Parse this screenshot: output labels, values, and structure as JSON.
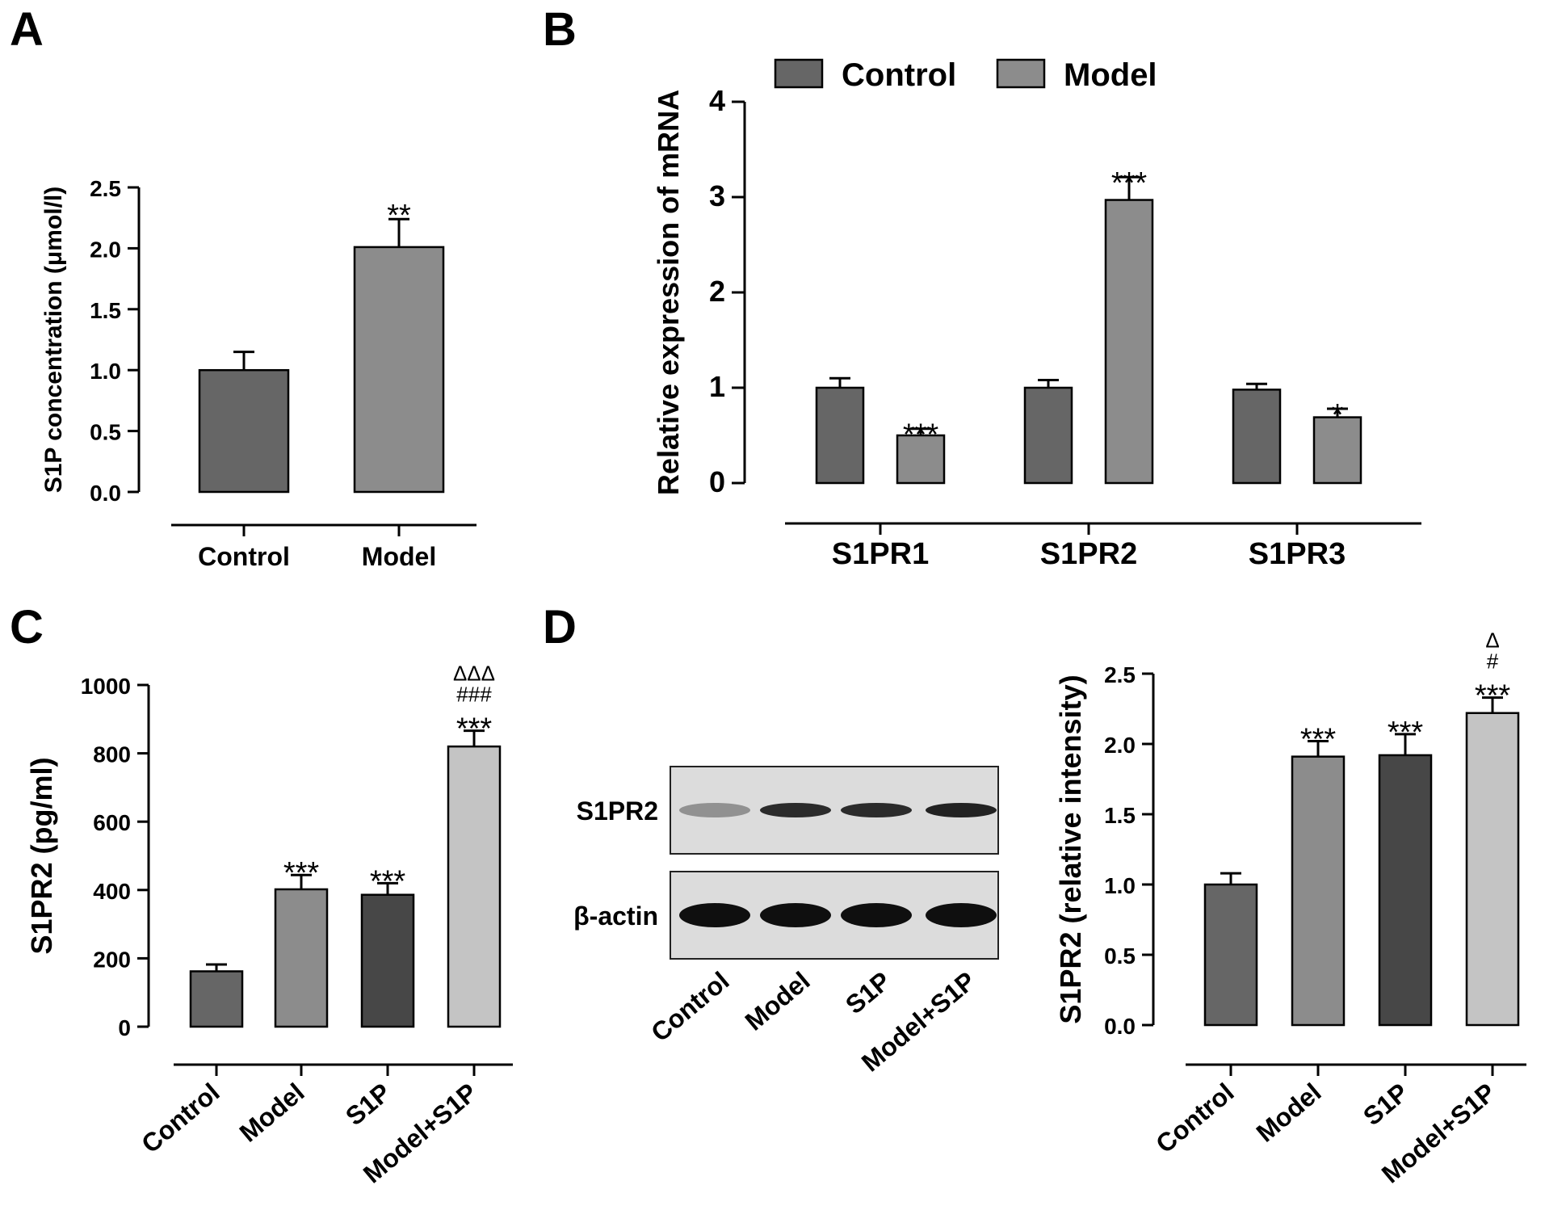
{
  "colors": {
    "control": "#666666",
    "model": "#8c8c8c",
    "s1p": "#474747",
    "model_s1p": "#c4c4c4",
    "axis": "#000000"
  },
  "chart_data": [
    {
      "panel": "A",
      "type": "bar",
      "categories": [
        "Control",
        "Model"
      ],
      "values": [
        1.0,
        2.01
      ],
      "errors": [
        0.15,
        0.23
      ],
      "significance": [
        "",
        "**"
      ],
      "ylabel": "S1P concentration (μmol/l)",
      "ylim": [
        0,
        2.5
      ],
      "yticks": [
        "0.0",
        "0.5",
        "1.0",
        "1.5",
        "2.0",
        "2.5"
      ],
      "bar_colors": [
        "#666666",
        "#8c8c8c"
      ]
    },
    {
      "panel": "B",
      "type": "bar",
      "categories": [
        "S1PR1",
        "S1PR2",
        "S1PR3"
      ],
      "series": [
        {
          "name": "Control",
          "values": [
            1.0,
            1.0,
            0.98
          ],
          "errors": [
            0.1,
            0.08,
            0.06
          ],
          "significance": [
            "",
            "",
            ""
          ],
          "color": "#666666"
        },
        {
          "name": "Model",
          "values": [
            0.5,
            2.97,
            0.69
          ],
          "errors": [
            0.07,
            0.24,
            0.09
          ],
          "significance": [
            "***",
            "***",
            "*"
          ],
          "color": "#8c8c8c"
        }
      ],
      "ylabel": "Relative expression of mRNA",
      "ylim": [
        0,
        4
      ],
      "yticks": [
        "0",
        "1",
        "2",
        "3",
        "4"
      ],
      "legend": "top"
    },
    {
      "panel": "C",
      "type": "bar",
      "categories": [
        "Control",
        "Model",
        "S1P",
        "Model+S1P"
      ],
      "values": [
        162,
        402,
        386,
        820
      ],
      "errors": [
        20,
        42,
        34,
        46
      ],
      "significance": [
        [],
        [
          "***"
        ],
        [
          "***"
        ],
        [
          "***",
          "###",
          "ΔΔΔ"
        ]
      ],
      "ylabel": "S1PR2 (pg/ml)",
      "ylim": [
        0,
        1000
      ],
      "yticks": [
        "0",
        "200",
        "400",
        "600",
        "800",
        "1000"
      ],
      "bar_colors": [
        "#666666",
        "#8c8c8c",
        "#474747",
        "#c4c4c4"
      ]
    },
    {
      "panel": "D",
      "type": "bar",
      "categories": [
        "Control",
        "Model",
        "S1P",
        "Model+S1P"
      ],
      "values": [
        1.0,
        1.91,
        1.92,
        2.22
      ],
      "errors": [
        0.08,
        0.11,
        0.15,
        0.11
      ],
      "significance": [
        [],
        [
          "***"
        ],
        [
          "***"
        ],
        [
          "***",
          "#",
          "Δ"
        ]
      ],
      "ylabel": "S1PR2 (relative intensity)",
      "ylim": [
        0,
        2.5
      ],
      "yticks": [
        "0.0",
        "0.5",
        "1.0",
        "1.5",
        "2.0",
        "2.5"
      ],
      "bar_colors": [
        "#666666",
        "#8c8c8c",
        "#474747",
        "#c4c4c4"
      ]
    }
  ],
  "panel_labels": [
    "A",
    "B",
    "C",
    "D"
  ],
  "western_blot": {
    "rows": [
      {
        "label": "S1PR2",
        "band_intensity": [
          0.3,
          0.85,
          0.85,
          0.9
        ]
      },
      {
        "label": "β-actin",
        "band_intensity": [
          1.0,
          1.0,
          1.0,
          1.0
        ]
      }
    ],
    "lanes": [
      "Control",
      "Model",
      "S1P",
      "Model+S1P"
    ]
  }
}
